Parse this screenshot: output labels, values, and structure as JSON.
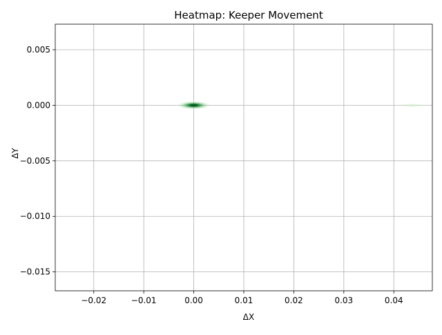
{
  "chart_data": {
    "type": "heatmap",
    "title": "Heatmap: Keeper Movement",
    "xlabel": "ΔX",
    "ylabel": "ΔY",
    "xlim": [
      -0.0277,
      0.0477
    ],
    "ylim": [
      -0.0167,
      0.0073
    ],
    "x_ticks": [
      -0.02,
      -0.01,
      0.0,
      0.01,
      0.02,
      0.03,
      0.04
    ],
    "x_tick_labels": [
      "−0.02",
      "−0.01",
      "0.00",
      "0.01",
      "0.02",
      "0.03",
      "0.04"
    ],
    "y_ticks": [
      0.005,
      0.0,
      -0.005,
      -0.01,
      -0.015
    ],
    "y_tick_labels": [
      "0.005",
      "0.000",
      "−0.005",
      "−0.010",
      "−0.015"
    ],
    "grid": true,
    "colormap": "Greens",
    "hotspots": [
      {
        "x": 0.0,
        "y": 0.0,
        "intensity": 1.0
      },
      {
        "x": 0.0435,
        "y": 0.0,
        "intensity": 0.1
      }
    ]
  },
  "colors": {
    "grid": "#b0b0b0",
    "axes": "#000000",
    "hot": "#0b5d1e",
    "warm": "#41ab5d",
    "faint": "#c7e9c0"
  }
}
